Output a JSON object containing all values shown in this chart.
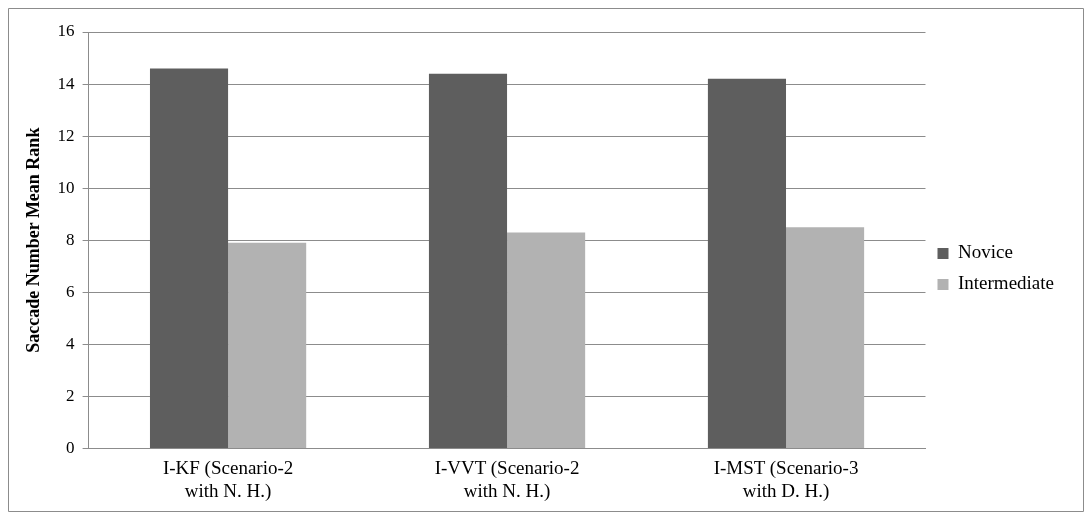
{
  "chart_data": {
    "type": "bar",
    "ylabel": "Saccade Number Mean Rank",
    "categories": [
      "I-KF (Scenario-2 with N. H.)",
      "I-VVT (Scenario-2 with N. H.)",
      "I-MST (Scenario-3 with D. H.)"
    ],
    "series": [
      {
        "name": "Novice",
        "color": "#5e5e5e",
        "values": [
          14.6,
          14.4,
          14.2
        ]
      },
      {
        "name": "Intermediate",
        "color": "#b2b2b2",
        "values": [
          7.9,
          8.3,
          8.5
        ]
      }
    ],
    "ylim": [
      0,
      16
    ],
    "yticks": [
      0,
      2,
      4,
      6,
      8,
      10,
      12,
      14,
      16
    ],
    "grid": "y",
    "legend": "right"
  }
}
